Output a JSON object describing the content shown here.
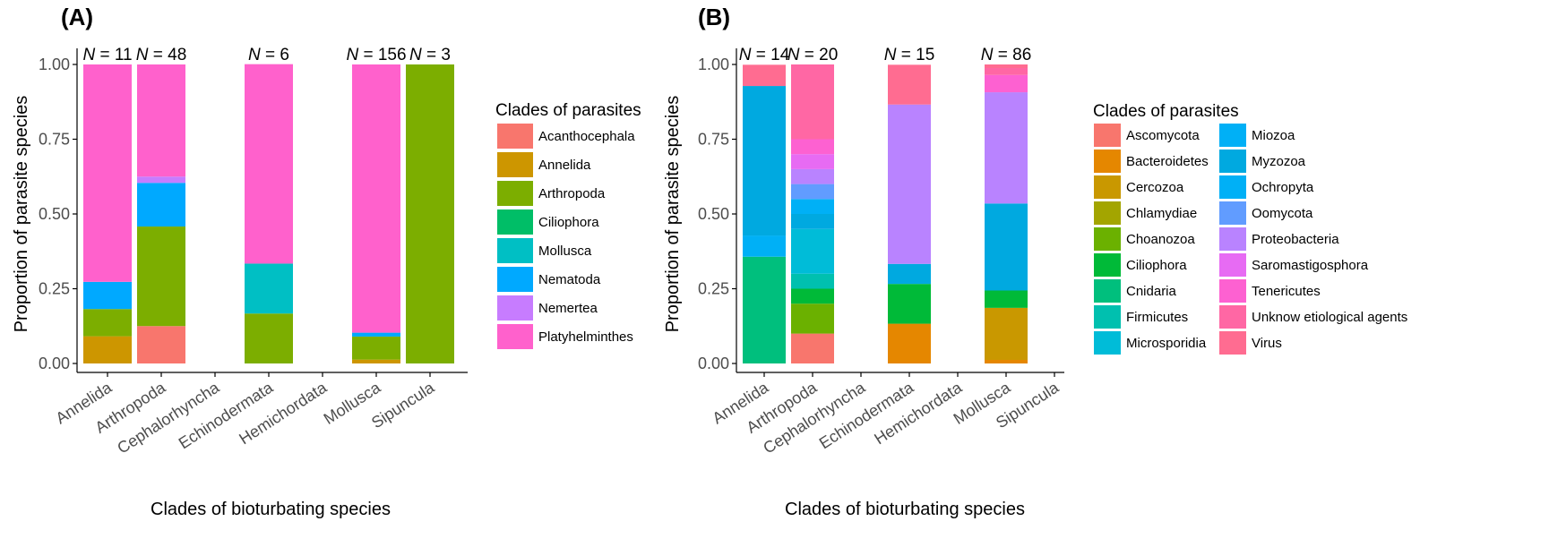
{
  "chart_data": [
    {
      "panel_label": "(A)",
      "type": "bar",
      "stacked": true,
      "xlabel": "Clades of bioturbating species",
      "ylabel": "Proportion of parasite species",
      "ylim": [
        0,
        1
      ],
      "yticks": [
        "0.00",
        "0.25",
        "0.50",
        "0.75",
        "1.00"
      ],
      "categories": [
        "Annelida",
        "Arthropoda",
        "Cephalorhyncha",
        "Echinodermata",
        "Hemichordata",
        "Mollusca",
        "Sipuncula"
      ],
      "n_counts": [
        "11",
        "48",
        "",
        "6",
        "",
        "156",
        "3"
      ],
      "n_prefix": "N",
      "legend_title": "Clades of parasites",
      "legend_position": "right",
      "series": [
        {
          "name": "Acanthocephala",
          "color": "#F8766D",
          "values": [
            0,
            0.125,
            0,
            0,
            0,
            0,
            0
          ]
        },
        {
          "name": "Annelida",
          "color": "#CD9600",
          "values": [
            0.091,
            0,
            0,
            0,
            0,
            0.013,
            0
          ]
        },
        {
          "name": "Arthropoda",
          "color": "#7CAE00",
          "values": [
            0.091,
            0.333,
            0,
            0.167,
            0,
            0.077,
            1.0
          ]
        },
        {
          "name": "Ciliophora",
          "color": "#00BE67",
          "values": [
            0,
            0,
            0,
            0,
            0,
            0,
            0
          ]
        },
        {
          "name": "Mollusca",
          "color": "#00BFC4",
          "values": [
            0,
            0,
            0,
            0.167,
            0,
            0,
            0
          ]
        },
        {
          "name": "Nematoda",
          "color": "#00A9FF",
          "values": [
            0.091,
            0.146,
            0,
            0,
            0,
            0.013,
            0
          ]
        },
        {
          "name": "Nemertea",
          "color": "#C77CFF",
          "values": [
            0,
            0.021,
            0,
            0,
            0,
            0,
            0
          ]
        },
        {
          "name": "Platyhelminthes",
          "color": "#FF61CC",
          "values": [
            0.727,
            0.375,
            0,
            0.667,
            0,
            0.897,
            0
          ]
        }
      ]
    },
    {
      "panel_label": "(B)",
      "type": "bar",
      "stacked": true,
      "xlabel": "Clades of bioturbating species",
      "ylabel": "Proportion of parasite species",
      "ylim": [
        0,
        1
      ],
      "yticks": [
        "0.00",
        "0.25",
        "0.50",
        "0.75",
        "1.00"
      ],
      "categories": [
        "Annelida",
        "Arthropoda",
        "Cephalorhyncha",
        "Echinodermata",
        "Hemichordata",
        "Mollusca",
        "Sipuncula"
      ],
      "n_counts": [
        "14",
        "20",
        "",
        "15",
        "",
        "86",
        ""
      ],
      "n_prefix": "N",
      "legend_title": "Clades of parasites",
      "legend_position": "right",
      "series": [
        {
          "name": "Ascomycota",
          "color": "#F8766D",
          "values": [
            0,
            0.1,
            0,
            0,
            0,
            0,
            0
          ]
        },
        {
          "name": "Bacteroidetes",
          "color": "#E58700",
          "values": [
            0,
            0,
            0,
            0.133,
            0,
            0.012,
            0
          ]
        },
        {
          "name": "Cercozoa",
          "color": "#C99800",
          "values": [
            0,
            0,
            0,
            0,
            0,
            0.174,
            0
          ]
        },
        {
          "name": "Chlamydiae",
          "color": "#A3A500",
          "values": [
            0,
            0,
            0,
            0,
            0,
            0,
            0
          ]
        },
        {
          "name": "Choanozoa",
          "color": "#6BB100",
          "values": [
            0,
            0.1,
            0,
            0,
            0,
            0,
            0
          ]
        },
        {
          "name": "Ciliophora",
          "color": "#00BA38",
          "values": [
            0,
            0.05,
            0,
            0.133,
            0,
            0.058,
            0
          ]
        },
        {
          "name": "Cnidaria",
          "color": "#00BF7D",
          "values": [
            0.357,
            0,
            0,
            0,
            0,
            0,
            0
          ]
        },
        {
          "name": "Firmicutes",
          "color": "#00C0AF",
          "values": [
            0,
            0.05,
            0,
            0,
            0,
            0,
            0
          ]
        },
        {
          "name": "Microsporidia",
          "color": "#00BCD8",
          "values": [
            0,
            0.15,
            0,
            0,
            0,
            0,
            0
          ]
        },
        {
          "name": "Miozoa",
          "color": "#00B0F6",
          "values": [
            0.071,
            0,
            0,
            0,
            0,
            0,
            0
          ]
        },
        {
          "name": "Myzozoa",
          "color": "#00A9E0",
          "values": [
            0.5,
            0.05,
            0,
            0.067,
            0,
            0.291,
            0
          ]
        },
        {
          "name": "Ochropyta",
          "color": "#00B0F6",
          "values": [
            0,
            0.05,
            0,
            0,
            0,
            0,
            0
          ]
        },
        {
          "name": "Oomycota",
          "color": "#619CFF",
          "values": [
            0,
            0.05,
            0,
            0,
            0,
            0,
            0
          ]
        },
        {
          "name": "Proteobacteria",
          "color": "#B983FF",
          "values": [
            0,
            0.05,
            0,
            0.533,
            0,
            0.372,
            0
          ]
        },
        {
          "name": "Saromastigosphora",
          "color": "#E76BF3",
          "values": [
            0,
            0.05,
            0,
            0,
            0,
            0,
            0
          ]
        },
        {
          "name": "Tenericutes",
          "color": "#FD61D1",
          "values": [
            0,
            0.05,
            0,
            0,
            0,
            0.058,
            0
          ]
        },
        {
          "name": "Unknow etiological agents",
          "color": "#FF67A4",
          "values": [
            0,
            0.25,
            0,
            0,
            0,
            0.023,
            0
          ]
        },
        {
          "name": "Virus",
          "color": "#FF6C91",
          "values": [
            0.071,
            0,
            0,
            0.133,
            0,
            0.012,
            0
          ]
        }
      ]
    }
  ]
}
